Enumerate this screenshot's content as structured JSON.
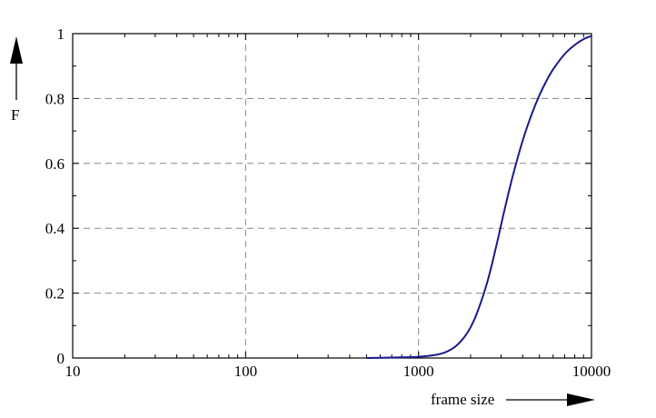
{
  "chart_data": {
    "type": "line",
    "title": "",
    "xlabel": "frame size",
    "ylabel": "F",
    "x_scale": "log",
    "xlim": [
      10,
      10000
    ],
    "ylim": [
      0,
      1
    ],
    "x_ticks": [
      10,
      100,
      1000,
      10000
    ],
    "x_tick_labels": [
      "10",
      "100",
      "1000",
      "10000"
    ],
    "y_ticks": [
      0,
      0.2,
      0.4,
      0.6,
      0.8,
      1
    ],
    "y_tick_labels": [
      "0",
      "0.2",
      "0.4",
      "0.6",
      "0.8",
      "1"
    ],
    "grid": true,
    "grid_style": "dashed",
    "series": [
      {
        "color": "#1a1a8c",
        "x": [
          500,
          800,
          1000,
          1200,
          1400,
          1600,
          1800,
          2000,
          2200,
          2500,
          2800,
          3000,
          3200,
          3500,
          4000,
          4500,
          5000,
          5500,
          6000,
          7000,
          8000,
          9000,
          10000
        ],
        "y": [
          0.0,
          0.002,
          0.004,
          0.008,
          0.016,
          0.032,
          0.058,
          0.095,
          0.145,
          0.235,
          0.34,
          0.41,
          0.475,
          0.56,
          0.67,
          0.75,
          0.81,
          0.855,
          0.89,
          0.937,
          0.965,
          0.983,
          0.993
        ]
      }
    ]
  }
}
